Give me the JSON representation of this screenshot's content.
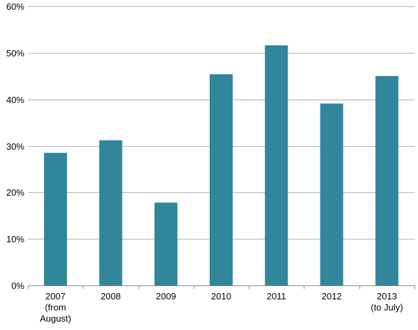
{
  "chart_data": {
    "type": "bar",
    "categories": [
      [
        "2007",
        "(from",
        "August)"
      ],
      [
        "2008"
      ],
      [
        "2009"
      ],
      [
        "2010"
      ],
      [
        "2011"
      ],
      [
        "2012"
      ],
      [
        "2013",
        "(to July)"
      ]
    ],
    "values": [
      28.5,
      31.2,
      17.8,
      45.4,
      51.6,
      39.1,
      45.0
    ],
    "ylim": [
      0,
      60
    ],
    "yticks": [
      "0%",
      "10%",
      "20%",
      "30%",
      "40%",
      "50%",
      "60%"
    ],
    "grid": true,
    "bar_color": "#31869b",
    "grid_color": "#b3b3b3",
    "axis_color": "#8c8c8c"
  }
}
